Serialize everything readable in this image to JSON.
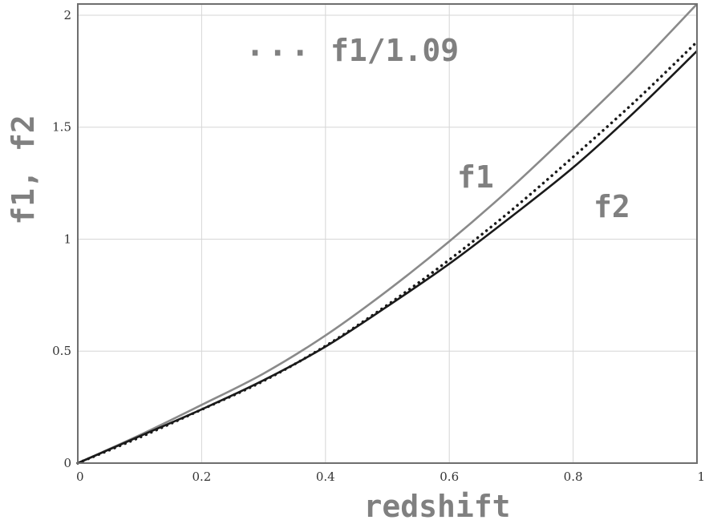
{
  "chart_data": {
    "type": "line",
    "xlabel": "redshift",
    "ylabel": "f1, f2",
    "xlim": [
      0,
      1
    ],
    "ylim": [
      0,
      2.05
    ],
    "xticks": [
      0,
      0.2,
      0.4,
      0.6,
      0.8,
      1
    ],
    "xtick_labels": [
      "0",
      "0.2",
      "0.4",
      "0.6",
      "0.8",
      "1"
    ],
    "yticks": [
      0,
      0.5,
      1,
      1.5,
      2
    ],
    "ytick_labels": [
      "0",
      "0.5",
      "1",
      "1.5",
      "2"
    ],
    "grid": true,
    "x": [
      0,
      0.1,
      0.2,
      0.3,
      0.4,
      0.5,
      0.6,
      0.7,
      0.8,
      0.9,
      1.0
    ],
    "series": [
      {
        "name": "f1",
        "style": "solid",
        "color": "#8a8a8a",
        "values": [
          0,
          0.125,
          0.26,
          0.4,
          0.57,
          0.77,
          0.99,
          1.23,
          1.49,
          1.76,
          2.05
        ]
      },
      {
        "name": "f2",
        "style": "solid",
        "color": "#1a1a1a",
        "values": [
          0,
          0.12,
          0.24,
          0.37,
          0.52,
          0.7,
          0.89,
          1.1,
          1.32,
          1.57,
          1.84
        ]
      },
      {
        "name": "f1/1.09",
        "style": "dotted",
        "color": "#1a1a1a",
        "values": [
          0,
          0.115,
          0.239,
          0.367,
          0.523,
          0.706,
          0.908,
          1.128,
          1.367,
          1.615,
          1.881
        ]
      }
    ],
    "annotations": {
      "legend_dots": "···",
      "legend_text": "f1/1.09",
      "f1_label": "f1",
      "f2_label": "f2"
    }
  }
}
